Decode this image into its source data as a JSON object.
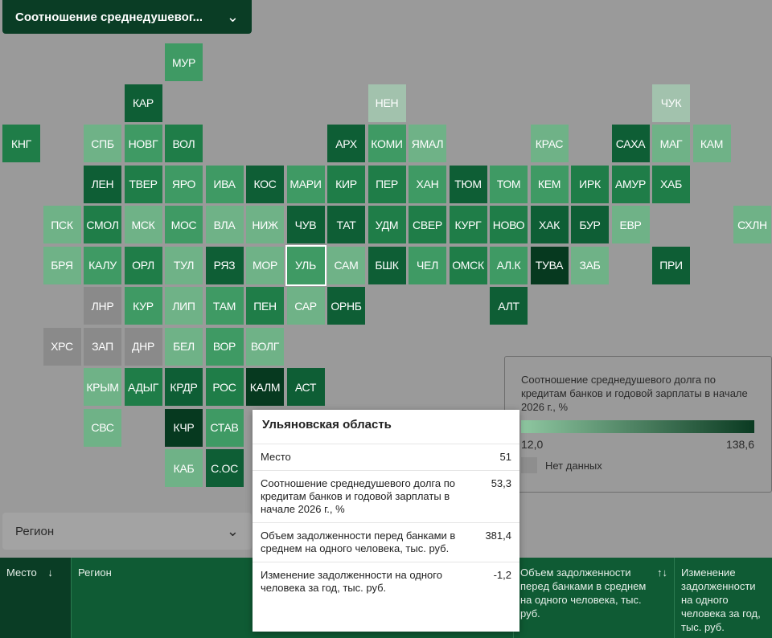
{
  "top_dropdown": {
    "label": "Соотношение среднедушевог...",
    "chevron": "chevron-down-icon"
  },
  "tiles": [
    {
      "code": "МУР",
      "col": 4,
      "row": 0,
      "value": "mid"
    },
    {
      "code": "КАР",
      "col": 3,
      "row": 1,
      "value": "dark"
    },
    {
      "code": "НЕН",
      "col": 9,
      "row": 1,
      "value": "nodata-light"
    },
    {
      "code": "ЧУК",
      "col": 16,
      "row": 1,
      "value": "nodata-light"
    },
    {
      "code": "КНГ",
      "col": 0,
      "row": 2,
      "value": "mid-dark"
    },
    {
      "code": "СПБ",
      "col": 2,
      "row": 2,
      "value": "light"
    },
    {
      "code": "НОВГ",
      "col": 3,
      "row": 2,
      "value": "mid"
    },
    {
      "code": "ВОЛ",
      "col": 4,
      "row": 2,
      "value": "mid-dark"
    },
    {
      "code": "АРХ",
      "col": 8,
      "row": 2,
      "value": "dark"
    },
    {
      "code": "КОМИ",
      "col": 9,
      "row": 2,
      "value": "mid"
    },
    {
      "code": "ЯМАЛ",
      "col": 10,
      "row": 2,
      "value": "light"
    },
    {
      "code": "КРАС",
      "col": 13,
      "row": 2,
      "value": "light"
    },
    {
      "code": "САХА",
      "col": 15,
      "row": 2,
      "value": "dark"
    },
    {
      "code": "МАГ",
      "col": 16,
      "row": 2,
      "value": "light"
    },
    {
      "code": "КАМ",
      "col": 17,
      "row": 2,
      "value": "light"
    },
    {
      "code": "ЛЕН",
      "col": 2,
      "row": 3,
      "value": "dark"
    },
    {
      "code": "ТВЕР",
      "col": 3,
      "row": 3,
      "value": "mid-dark"
    },
    {
      "code": "ЯРО",
      "col": 4,
      "row": 3,
      "value": "mid"
    },
    {
      "code": "ИВА",
      "col": 5,
      "row": 3,
      "value": "mid"
    },
    {
      "code": "КОС",
      "col": 6,
      "row": 3,
      "value": "dark"
    },
    {
      "code": "МАРИ",
      "col": 7,
      "row": 3,
      "value": "mid"
    },
    {
      "code": "КИР",
      "col": 8,
      "row": 3,
      "value": "mid-dark"
    },
    {
      "code": "ПЕР",
      "col": 9,
      "row": 3,
      "value": "mid-dark"
    },
    {
      "code": "ХАН",
      "col": 10,
      "row": 3,
      "value": "mid"
    },
    {
      "code": "ТЮМ",
      "col": 11,
      "row": 3,
      "value": "dark"
    },
    {
      "code": "ТОМ",
      "col": 12,
      "row": 3,
      "value": "mid"
    },
    {
      "code": "КЕМ",
      "col": 13,
      "row": 3,
      "value": "mid"
    },
    {
      "code": "ИРК",
      "col": 14,
      "row": 3,
      "value": "mid-dark"
    },
    {
      "code": "АМУР",
      "col": 15,
      "row": 3,
      "value": "mid-dark"
    },
    {
      "code": "ХАБ",
      "col": 16,
      "row": 3,
      "value": "mid-dark"
    },
    {
      "code": "ПСК",
      "col": 1,
      "row": 4,
      "value": "light"
    },
    {
      "code": "СМОЛ",
      "col": 2,
      "row": 4,
      "value": "mid-dark"
    },
    {
      "code": "МСК",
      "col": 3,
      "row": 4,
      "value": "light"
    },
    {
      "code": "МОС",
      "col": 4,
      "row": 4,
      "value": "mid"
    },
    {
      "code": "ВЛА",
      "col": 5,
      "row": 4,
      "value": "light"
    },
    {
      "code": "НИЖ",
      "col": 6,
      "row": 4,
      "value": "light"
    },
    {
      "code": "ЧУВ",
      "col": 7,
      "row": 4,
      "value": "dark"
    },
    {
      "code": "ТАТ",
      "col": 8,
      "row": 4,
      "value": "dark"
    },
    {
      "code": "УДМ",
      "col": 9,
      "row": 4,
      "value": "mid-dark"
    },
    {
      "code": "СВЕР",
      "col": 10,
      "row": 4,
      "value": "mid-dark"
    },
    {
      "code": "КУРГ",
      "col": 11,
      "row": 4,
      "value": "mid-dark"
    },
    {
      "code": "НОВО",
      "col": 12,
      "row": 4,
      "value": "mid-dark"
    },
    {
      "code": "ХАК",
      "col": 13,
      "row": 4,
      "value": "dark"
    },
    {
      "code": "БУР",
      "col": 14,
      "row": 4,
      "value": "dark"
    },
    {
      "code": "ЕВР",
      "col": 15,
      "row": 4,
      "value": "light"
    },
    {
      "code": "СХЛН",
      "col": 18,
      "row": 4,
      "value": "light"
    },
    {
      "code": "БРЯ",
      "col": 1,
      "row": 5,
      "value": "light"
    },
    {
      "code": "КАЛУ",
      "col": 2,
      "row": 5,
      "value": "mid"
    },
    {
      "code": "ОРЛ",
      "col": 3,
      "row": 5,
      "value": "mid-dark"
    },
    {
      "code": "ТУЛ",
      "col": 4,
      "row": 5,
      "value": "light"
    },
    {
      "code": "РЯЗ",
      "col": 5,
      "row": 5,
      "value": "dark"
    },
    {
      "code": "МОР",
      "col": 6,
      "row": 5,
      "value": "light"
    },
    {
      "code": "УЛЬ",
      "col": 7,
      "row": 5,
      "value": "mid",
      "selected": true
    },
    {
      "code": "САМ",
      "col": 8,
      "row": 5,
      "value": "light"
    },
    {
      "code": "БШК",
      "col": 9,
      "row": 5,
      "value": "dark"
    },
    {
      "code": "ЧЕЛ",
      "col": 10,
      "row": 5,
      "value": "mid"
    },
    {
      "code": "ОМСК",
      "col": 11,
      "row": 5,
      "value": "mid-dark"
    },
    {
      "code": "АЛ.К",
      "col": 12,
      "row": 5,
      "value": "mid"
    },
    {
      "code": "ТУВА",
      "col": 13,
      "row": 5,
      "value": "darkest"
    },
    {
      "code": "ЗАБ",
      "col": 14,
      "row": 5,
      "value": "light"
    },
    {
      "code": "ПРИ",
      "col": 16,
      "row": 5,
      "value": "dark"
    },
    {
      "code": "ЛНР",
      "col": 2,
      "row": 6,
      "value": "nodata"
    },
    {
      "code": "КУР",
      "col": 3,
      "row": 6,
      "value": "mid"
    },
    {
      "code": "ЛИП",
      "col": 4,
      "row": 6,
      "value": "light"
    },
    {
      "code": "ТАМ",
      "col": 5,
      "row": 6,
      "value": "mid"
    },
    {
      "code": "ПЕН",
      "col": 6,
      "row": 6,
      "value": "mid-dark"
    },
    {
      "code": "САР",
      "col": 7,
      "row": 6,
      "value": "light"
    },
    {
      "code": "ОРНБ",
      "col": 8,
      "row": 6,
      "value": "dark"
    },
    {
      "code": "АЛТ",
      "col": 12,
      "row": 6,
      "value": "dark"
    },
    {
      "code": "ХРС",
      "col": 1,
      "row": 7,
      "value": "nodata"
    },
    {
      "code": "ЗАП",
      "col": 2,
      "row": 7,
      "value": "nodata"
    },
    {
      "code": "ДНР",
      "col": 3,
      "row": 7,
      "value": "nodata"
    },
    {
      "code": "БЕЛ",
      "col": 4,
      "row": 7,
      "value": "light"
    },
    {
      "code": "ВОР",
      "col": 5,
      "row": 7,
      "value": "mid"
    },
    {
      "code": "ВОЛГ",
      "col": 6,
      "row": 7,
      "value": "light"
    },
    {
      "code": "КРЫМ",
      "col": 2,
      "row": 8,
      "value": "light"
    },
    {
      "code": "АДЫГ",
      "col": 3,
      "row": 8,
      "value": "mid-dark"
    },
    {
      "code": "КРДР",
      "col": 4,
      "row": 8,
      "value": "dark"
    },
    {
      "code": "РОС",
      "col": 5,
      "row": 8,
      "value": "mid-dark"
    },
    {
      "code": "КАЛМ",
      "col": 6,
      "row": 8,
      "value": "darkest"
    },
    {
      "code": "АСТ",
      "col": 7,
      "row": 8,
      "value": "dark"
    },
    {
      "code": "СВС",
      "col": 2,
      "row": 9,
      "value": "light"
    },
    {
      "code": "КЧР",
      "col": 4,
      "row": 9,
      "value": "darkest"
    },
    {
      "code": "СТАВ",
      "col": 5,
      "row": 9,
      "value": "mid"
    },
    {
      "code": "КАБ",
      "col": 4,
      "row": 10,
      "value": "light"
    },
    {
      "code": "С.ОС",
      "col": 5,
      "row": 10,
      "value": "dark"
    }
  ],
  "colors": {
    "light": "#6fb287",
    "mid": "#3f9a64",
    "mid-dark": "#1f7d48",
    "dark": "#0e5e35",
    "darkest": "#06391f",
    "nodata": "#8a8a8a",
    "nodata-light": "#a2c2ad"
  },
  "legend": {
    "title": "Соотношение среднедушевого долга по кредитам банков и годовой зарплаты в начале 2026 г., %",
    "min": "12,0",
    "max": "138,6",
    "nodata_label": "Нет данных"
  },
  "region_dropdown": {
    "placeholder": "Регион"
  },
  "table_header": {
    "col_place": "Место",
    "col_place_sort": "↓",
    "col_region": "Регион",
    "col_debt": "Объем задолженности перед банками в среднем на одного человека, тыс. руб.",
    "col_debt_sort": "↑↓",
    "col_change": "Изменение задолженности на одного человека за год, тыс. руб."
  },
  "tooltip": {
    "title": "Ульяновская область",
    "rows": [
      {
        "label": "Место",
        "value": "51"
      },
      {
        "label": "Соотношение среднедушевого долга по кредитам банков и годовой зарплаты в начале 2026 г., %",
        "value": "53,3"
      },
      {
        "label": "Объем задолженности перед банками в среднем на одного человека, тыс. руб.",
        "value": "381,4"
      },
      {
        "label": "Изменение задолженности на одного человека за год, тыс. руб.",
        "value": "-1,2"
      }
    ]
  }
}
